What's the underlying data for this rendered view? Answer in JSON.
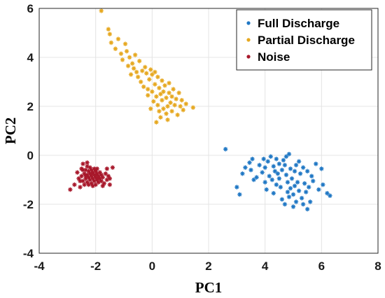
{
  "chart_data": {
    "type": "scatter",
    "xlabel": "PC1",
    "ylabel": "PC2",
    "xlim": [
      -4,
      8
    ],
    "ylim": [
      -4,
      6
    ],
    "xticks": [
      "-4",
      "-2",
      "0",
      "2",
      "4",
      "6",
      "8"
    ],
    "yticks": [
      "-4",
      "-2",
      "0",
      "2",
      "4",
      "6"
    ],
    "grid": true,
    "legend_position": "top-right",
    "series": [
      {
        "name": "Full Discharge",
        "color": "#1f77c4",
        "marker": "asterisk",
        "points": [
          [
            2.6,
            0.25
          ],
          [
            3.0,
            -1.3
          ],
          [
            3.1,
            -1.6
          ],
          [
            3.2,
            -0.75
          ],
          [
            3.3,
            -0.5
          ],
          [
            3.45,
            -0.3
          ],
          [
            3.5,
            -0.6
          ],
          [
            3.6,
            -1.0
          ],
          [
            3.7,
            -0.9
          ],
          [
            3.8,
            -0.4
          ],
          [
            3.9,
            -0.7
          ],
          [
            4.0,
            -0.5
          ],
          [
            4.0,
            -1.1
          ],
          [
            4.1,
            -0.25
          ],
          [
            4.15,
            -0.85
          ],
          [
            4.2,
            -0.05
          ],
          [
            4.25,
            -1.0
          ],
          [
            4.3,
            -0.45
          ],
          [
            4.35,
            -0.65
          ],
          [
            4.4,
            -0.15
          ],
          [
            4.4,
            -1.2
          ],
          [
            4.45,
            -0.75
          ],
          [
            4.5,
            -0.35
          ],
          [
            4.5,
            -0.95
          ],
          [
            4.55,
            -1.3
          ],
          [
            4.6,
            -0.6
          ],
          [
            4.6,
            -1.8
          ],
          [
            4.65,
            -0.2
          ],
          [
            4.7,
            -0.4
          ],
          [
            4.7,
            -2.0
          ],
          [
            4.75,
            -0.8
          ],
          [
            4.8,
            -1.1
          ],
          [
            4.8,
            -1.5
          ],
          [
            4.85,
            0.05
          ],
          [
            4.85,
            -1.7
          ],
          [
            4.9,
            -0.55
          ],
          [
            4.9,
            -1.35
          ],
          [
            4.95,
            -0.95
          ],
          [
            5.0,
            -1.6
          ],
          [
            5.0,
            -2.1
          ],
          [
            5.05,
            -0.65
          ],
          [
            5.05,
            -1.25
          ],
          [
            5.1,
            -0.4
          ],
          [
            5.1,
            -1.9
          ],
          [
            5.15,
            -1.1
          ],
          [
            5.2,
            -1.45
          ],
          [
            5.25,
            -0.75
          ],
          [
            5.3,
            -1.75
          ],
          [
            5.35,
            -0.5
          ],
          [
            5.35,
            -2.0
          ],
          [
            5.4,
            -1.15
          ],
          [
            5.45,
            -1.5
          ],
          [
            5.5,
            -0.65
          ],
          [
            5.5,
            -2.2
          ],
          [
            5.55,
            -1.3
          ],
          [
            5.6,
            -1.9
          ],
          [
            5.65,
            -0.85
          ],
          [
            5.7,
            -1.05
          ],
          [
            5.8,
            -0.35
          ],
          [
            5.9,
            -1.4
          ],
          [
            6.0,
            -0.55
          ],
          [
            6.05,
            -1.2
          ],
          [
            6.2,
            -1.55
          ],
          [
            6.3,
            -1.65
          ],
          [
            4.05,
            -1.4
          ],
          [
            3.95,
            -0.15
          ],
          [
            4.75,
            -0.05
          ],
          [
            5.2,
            -0.25
          ],
          [
            4.3,
            -1.55
          ],
          [
            3.55,
            -0.15
          ]
        ]
      },
      {
        "name": "Partial Discharge",
        "color": "#e6a820",
        "marker": "asterisk",
        "points": [
          [
            -1.8,
            5.9
          ],
          [
            -1.55,
            5.15
          ],
          [
            -1.5,
            4.95
          ],
          [
            -1.45,
            4.6
          ],
          [
            -1.3,
            4.35
          ],
          [
            -1.2,
            4.75
          ],
          [
            -1.1,
            4.15
          ],
          [
            -1.05,
            3.9
          ],
          [
            -0.95,
            4.55
          ],
          [
            -0.9,
            4.25
          ],
          [
            -0.85,
            3.65
          ],
          [
            -0.8,
            4.0
          ],
          [
            -0.75,
            3.3
          ],
          [
            -0.7,
            3.75
          ],
          [
            -0.65,
            3.55
          ],
          [
            -0.6,
            4.1
          ],
          [
            -0.55,
            3.4
          ],
          [
            -0.5,
            3.2
          ],
          [
            -0.45,
            3.85
          ],
          [
            -0.4,
            3.0
          ],
          [
            -0.35,
            3.45
          ],
          [
            -0.3,
            2.8
          ],
          [
            -0.25,
            3.6
          ],
          [
            -0.2,
            3.35
          ],
          [
            -0.15,
            2.7
          ],
          [
            -0.1,
            3.1
          ],
          [
            -0.05,
            3.5
          ],
          [
            0.0,
            2.6
          ],
          [
            0.0,
            3.3
          ],
          [
            0.05,
            2.2
          ],
          [
            0.1,
            2.9
          ],
          [
            0.1,
            3.4
          ],
          [
            0.15,
            2.4
          ],
          [
            0.2,
            3.2
          ],
          [
            0.2,
            2.05
          ],
          [
            0.25,
            2.75
          ],
          [
            0.3,
            2.5
          ],
          [
            0.3,
            1.55
          ],
          [
            0.35,
            2.25
          ],
          [
            0.35,
            3.05
          ],
          [
            0.4,
            1.9
          ],
          [
            0.4,
            2.6
          ],
          [
            0.45,
            2.85
          ],
          [
            0.5,
            2.35
          ],
          [
            0.5,
            1.7
          ],
          [
            0.55,
            2.0
          ],
          [
            0.6,
            2.55
          ],
          [
            0.6,
            2.95
          ],
          [
            0.65,
            2.15
          ],
          [
            0.7,
            1.8
          ],
          [
            0.7,
            2.4
          ],
          [
            0.75,
            2.7
          ],
          [
            0.8,
            2.05
          ],
          [
            0.85,
            2.3
          ],
          [
            0.9,
            1.65
          ],
          [
            0.95,
            2.55
          ],
          [
            1.0,
            2.0
          ],
          [
            1.05,
            2.25
          ],
          [
            1.1,
            1.85
          ],
          [
            1.2,
            2.1
          ],
          [
            1.45,
            1.95
          ],
          [
            -0.15,
            2.45
          ],
          [
            0.15,
            1.35
          ],
          [
            -0.05,
            1.9
          ],
          [
            0.55,
            1.45
          ],
          [
            0.25,
            1.8
          ]
        ]
      },
      {
        "name": "Noise",
        "color": "#a8182b",
        "marker": "asterisk",
        "points": [
          [
            -2.9,
            -1.4
          ],
          [
            -2.75,
            -1.2
          ],
          [
            -2.65,
            -0.7
          ],
          [
            -2.6,
            -0.95
          ],
          [
            -2.55,
            -1.3
          ],
          [
            -2.5,
            -0.55
          ],
          [
            -2.5,
            -0.85
          ],
          [
            -2.45,
            -1.05
          ],
          [
            -2.45,
            -0.35
          ],
          [
            -2.4,
            -0.75
          ],
          [
            -2.4,
            -1.2
          ],
          [
            -2.35,
            -0.6
          ],
          [
            -2.35,
            -0.95
          ],
          [
            -2.3,
            -0.45
          ],
          [
            -2.3,
            -0.8
          ],
          [
            -2.3,
            -1.1
          ],
          [
            -2.25,
            -0.65
          ],
          [
            -2.25,
            -0.9
          ],
          [
            -2.2,
            -0.5
          ],
          [
            -2.2,
            -0.75
          ],
          [
            -2.2,
            -1.0
          ],
          [
            -2.15,
            -0.6
          ],
          [
            -2.15,
            -0.85
          ],
          [
            -2.15,
            -1.15
          ],
          [
            -2.1,
            -0.7
          ],
          [
            -2.1,
            -0.95
          ],
          [
            -2.05,
            -0.55
          ],
          [
            -2.05,
            -0.8
          ],
          [
            -2.05,
            -1.05
          ],
          [
            -2.0,
            -0.65
          ],
          [
            -2.0,
            -0.9
          ],
          [
            -2.0,
            -1.2
          ],
          [
            -1.95,
            -0.75
          ],
          [
            -1.95,
            -1.0
          ],
          [
            -1.9,
            -0.85
          ],
          [
            -1.9,
            -1.1
          ],
          [
            -1.85,
            -0.7
          ],
          [
            -1.85,
            -0.95
          ],
          [
            -1.8,
            -1.05
          ],
          [
            -1.8,
            -0.8
          ],
          [
            -1.75,
            -0.9
          ],
          [
            -1.7,
            -1.15
          ],
          [
            -1.65,
            -0.75
          ],
          [
            -1.6,
            -1.0
          ],
          [
            -1.55,
            -0.85
          ],
          [
            -1.5,
            -1.2
          ],
          [
            -1.5,
            -0.95
          ],
          [
            -1.4,
            -0.5
          ],
          [
            -1.6,
            -0.55
          ],
          [
            -2.3,
            -0.3
          ],
          [
            -2.45,
            -0.6
          ],
          [
            -2.55,
            -1.05
          ],
          [
            -2.1,
            -1.25
          ],
          [
            -1.95,
            -0.55
          ],
          [
            -2.25,
            -1.2
          ],
          [
            -1.75,
            -1.25
          ],
          [
            -2.35,
            -0.85
          ],
          [
            -2.15,
            -0.75
          ],
          [
            -2.0,
            -0.8
          ],
          [
            -1.9,
            -0.95
          ]
        ]
      }
    ]
  }
}
